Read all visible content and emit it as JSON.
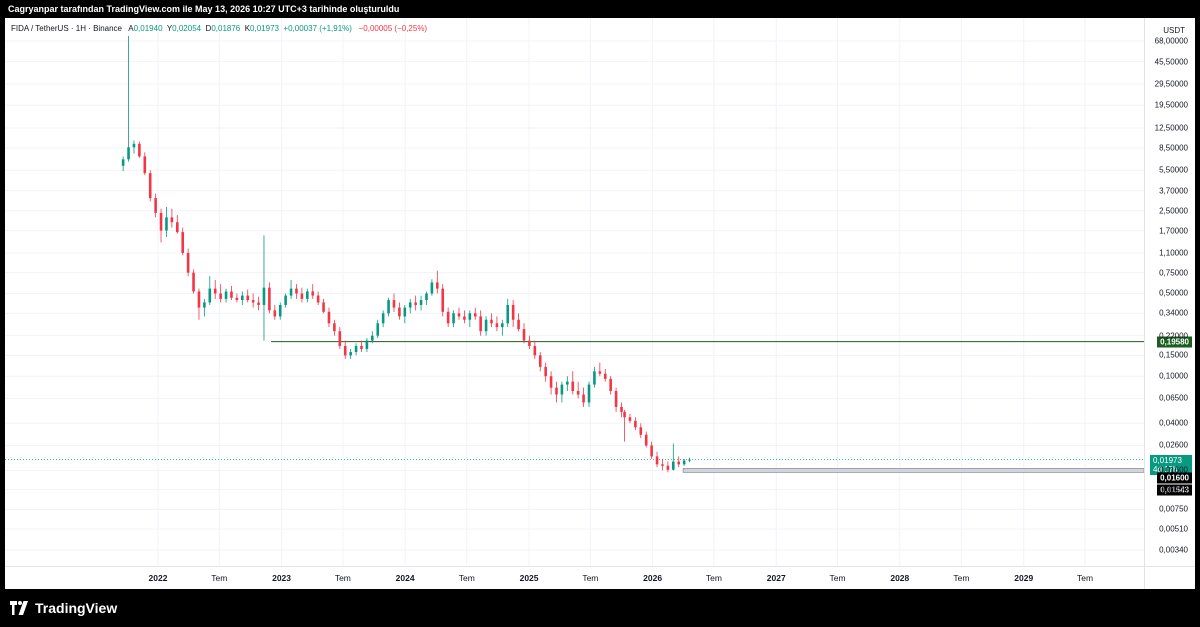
{
  "header": {
    "caption": "Cagryanpar tarafından TradingView.com ile May 13, 2026 10:27 UTC+3 tarihinde oluşturuldu"
  },
  "legend": {
    "symbol": "FIDA / TetherUS · 1H · Binance",
    "open_label": "A",
    "open": "0,01940",
    "high_label": "Y",
    "high": "0,02054",
    "low_label": "D",
    "low": "0,01876",
    "close_label": "K",
    "close": "0,01973",
    "change": "+0,00037 (+1,91%)",
    "extra_change": "−0,00005 (−0,25%)"
  },
  "price_scale": {
    "currency": "USDT",
    "ticks": [
      "68,00000",
      "45,50000",
      "29,50000",
      "19,50000",
      "12,50000",
      "8,50000",
      "5,50000",
      "3,70000",
      "2,50000",
      "1,70000",
      "1,10000",
      "0,75000",
      "0,50000",
      "0,34000",
      "0,22000",
      "0,15000",
      "0,10000",
      "0,06500",
      "0,04000",
      "0,02600",
      "0,01600",
      "0,01100",
      "0,00750",
      "0,00510",
      "0,00340"
    ],
    "scale": "log"
  },
  "time_axis": {
    "ticks": [
      {
        "label": "2022",
        "date": "2022-01-01",
        "year": true
      },
      {
        "label": "Tem",
        "date": "2022-07-01",
        "year": false
      },
      {
        "label": "2023",
        "date": "2023-01-01",
        "year": true
      },
      {
        "label": "Tem",
        "date": "2023-07-01",
        "year": false
      },
      {
        "label": "2024",
        "date": "2024-01-01",
        "year": true
      },
      {
        "label": "Tem",
        "date": "2024-07-01",
        "year": false
      },
      {
        "label": "2025",
        "date": "2025-01-01",
        "year": true
      },
      {
        "label": "Tem",
        "date": "2025-07-01",
        "year": false
      },
      {
        "label": "2026",
        "date": "2026-01-01",
        "year": true
      },
      {
        "label": "Tem",
        "date": "2026-07-01",
        "year": false
      },
      {
        "label": "2027",
        "date": "2027-01-01",
        "year": true
      },
      {
        "label": "Tem",
        "date": "2027-07-01",
        "year": false
      },
      {
        "label": "2028",
        "date": "2028-01-01",
        "year": true
      },
      {
        "label": "Tem",
        "date": "2028-07-01",
        "year": false
      },
      {
        "label": "2029",
        "date": "2029-01-01",
        "year": true
      },
      {
        "label": "Tem",
        "date": "2029-07-01",
        "year": false
      }
    ]
  },
  "price_tags": {
    "level_high": "0,19580",
    "last_price": "0,01973",
    "countdown": "4d 17h",
    "level_low": "0,01600",
    "low_mark": "0,01543"
  },
  "colors": {
    "up": "#089981",
    "down": "#f23645",
    "level_line": "#1b5e20",
    "grid": "#f0f3fa"
  },
  "chart_data": {
    "type": "candlestick",
    "symbol": "FIDA / TetherUS",
    "interval": "1H",
    "exchange": "Binance",
    "y_scale": "log",
    "grid": true,
    "horizontal_levels": [
      {
        "value": 0.1958,
        "from": "2022-12-01",
        "label": "0,19580"
      },
      {
        "value": 0.016,
        "from": "2026-04-01",
        "label": "0,01600"
      }
    ],
    "last_price": 0.01973,
    "ohlc": [
      [
        "2021-09-20",
        6.0,
        7.2,
        5.4,
        6.8
      ],
      [
        "2021-10-06",
        6.8,
        75,
        6.5,
        8.6
      ],
      [
        "2021-10-22",
        8.6,
        9.8,
        7.6,
        9.2
      ],
      [
        "2021-11-07",
        9.2,
        9.6,
        7.0,
        7.2
      ],
      [
        "2021-11-23",
        7.2,
        7.8,
        5.0,
        5.2
      ],
      [
        "2021-12-09",
        5.2,
        5.5,
        3.0,
        3.2
      ],
      [
        "2021-12-25",
        3.2,
        3.5,
        2.2,
        2.4
      ],
      [
        "2022-01-10",
        2.4,
        2.6,
        1.35,
        1.7
      ],
      [
        "2022-01-26",
        1.7,
        2.7,
        1.5,
        2.2
      ],
      [
        "2022-02-11",
        2.2,
        2.6,
        1.8,
        2.0
      ],
      [
        "2022-02-27",
        2.0,
        2.3,
        1.6,
        1.65
      ],
      [
        "2022-03-15",
        1.65,
        1.8,
        1.05,
        1.1
      ],
      [
        "2022-03-31",
        1.1,
        1.2,
        0.7,
        0.75
      ],
      [
        "2022-04-16",
        0.75,
        0.8,
        0.5,
        0.52
      ],
      [
        "2022-05-02",
        0.52,
        0.55,
        0.3,
        0.38
      ],
      [
        "2022-05-18",
        0.38,
        0.45,
        0.32,
        0.42
      ],
      [
        "2022-06-03",
        0.42,
        0.7,
        0.4,
        0.55
      ],
      [
        "2022-06-19",
        0.55,
        0.65,
        0.45,
        0.5
      ],
      [
        "2022-07-05",
        0.5,
        0.6,
        0.42,
        0.45
      ],
      [
        "2022-07-21",
        0.45,
        0.55,
        0.42,
        0.52
      ],
      [
        "2022-08-06",
        0.52,
        0.58,
        0.44,
        0.46
      ],
      [
        "2022-08-22",
        0.46,
        0.5,
        0.42,
        0.44
      ],
      [
        "2022-09-07",
        0.44,
        0.52,
        0.4,
        0.48
      ],
      [
        "2022-09-23",
        0.48,
        0.54,
        0.42,
        0.44
      ],
      [
        "2022-10-09",
        0.44,
        0.5,
        0.38,
        0.42
      ],
      [
        "2022-10-25",
        0.42,
        0.47,
        0.36,
        0.4
      ],
      [
        "2022-11-10",
        0.4,
        1.55,
        0.2,
        0.56
      ],
      [
        "2022-11-26",
        0.56,
        0.62,
        0.34,
        0.36
      ],
      [
        "2022-12-12",
        0.36,
        0.4,
        0.3,
        0.32
      ],
      [
        "2022-12-28",
        0.32,
        0.42,
        0.3,
        0.4
      ],
      [
        "2023-01-13",
        0.4,
        0.5,
        0.38,
        0.48
      ],
      [
        "2023-01-29",
        0.48,
        0.65,
        0.45,
        0.55
      ],
      [
        "2023-02-14",
        0.55,
        0.6,
        0.45,
        0.5
      ],
      [
        "2023-03-02",
        0.5,
        0.56,
        0.42,
        0.45
      ],
      [
        "2023-03-18",
        0.45,
        0.55,
        0.42,
        0.52
      ],
      [
        "2023-04-03",
        0.52,
        0.6,
        0.45,
        0.48
      ],
      [
        "2023-04-19",
        0.48,
        0.52,
        0.4,
        0.42
      ],
      [
        "2023-05-05",
        0.42,
        0.45,
        0.34,
        0.35
      ],
      [
        "2023-05-21",
        0.35,
        0.38,
        0.26,
        0.28
      ],
      [
        "2023-06-06",
        0.28,
        0.3,
        0.22,
        0.24
      ],
      [
        "2023-06-22",
        0.24,
        0.26,
        0.17,
        0.18
      ],
      [
        "2023-07-08",
        0.18,
        0.2,
        0.14,
        0.15
      ],
      [
        "2023-07-24",
        0.15,
        0.17,
        0.14,
        0.16
      ],
      [
        "2023-08-09",
        0.16,
        0.19,
        0.15,
        0.18
      ],
      [
        "2023-08-25",
        0.18,
        0.2,
        0.16,
        0.17
      ],
      [
        "2023-09-10",
        0.17,
        0.21,
        0.16,
        0.2
      ],
      [
        "2023-09-26",
        0.2,
        0.24,
        0.19,
        0.22
      ],
      [
        "2023-10-12",
        0.22,
        0.3,
        0.21,
        0.28
      ],
      [
        "2023-10-28",
        0.28,
        0.36,
        0.26,
        0.34
      ],
      [
        "2023-11-13",
        0.34,
        0.46,
        0.32,
        0.44
      ],
      [
        "2023-11-29",
        0.44,
        0.5,
        0.35,
        0.38
      ],
      [
        "2023-12-15",
        0.38,
        0.42,
        0.3,
        0.32
      ],
      [
        "2023-12-31",
        0.32,
        0.4,
        0.28,
        0.38
      ],
      [
        "2024-01-16",
        0.38,
        0.45,
        0.34,
        0.42
      ],
      [
        "2024-02-01",
        0.42,
        0.48,
        0.36,
        0.4
      ],
      [
        "2024-02-17",
        0.4,
        0.48,
        0.36,
        0.44
      ],
      [
        "2024-03-04",
        0.44,
        0.52,
        0.4,
        0.5
      ],
      [
        "2024-03-20",
        0.5,
        0.66,
        0.48,
        0.62
      ],
      [
        "2024-04-05",
        0.62,
        0.78,
        0.5,
        0.55
      ],
      [
        "2024-04-21",
        0.55,
        0.6,
        0.32,
        0.35
      ],
      [
        "2024-05-07",
        0.35,
        0.38,
        0.26,
        0.28
      ],
      [
        "2024-05-23",
        0.28,
        0.36,
        0.26,
        0.34
      ],
      [
        "2024-06-08",
        0.34,
        0.38,
        0.3,
        0.32
      ],
      [
        "2024-06-24",
        0.32,
        0.36,
        0.28,
        0.3
      ],
      [
        "2024-07-10",
        0.3,
        0.36,
        0.26,
        0.34
      ],
      [
        "2024-07-26",
        0.34,
        0.38,
        0.3,
        0.32
      ],
      [
        "2024-08-11",
        0.32,
        0.36,
        0.22,
        0.24
      ],
      [
        "2024-08-27",
        0.24,
        0.32,
        0.22,
        0.3
      ],
      [
        "2024-09-12",
        0.3,
        0.34,
        0.26,
        0.28
      ],
      [
        "2024-09-28",
        0.28,
        0.32,
        0.24,
        0.26
      ],
      [
        "2024-10-14",
        0.26,
        0.3,
        0.22,
        0.28
      ],
      [
        "2024-10-30",
        0.28,
        0.45,
        0.26,
        0.4
      ],
      [
        "2024-11-15",
        0.4,
        0.44,
        0.26,
        0.3
      ],
      [
        "2024-12-01",
        0.3,
        0.34,
        0.24,
        0.25
      ],
      [
        "2024-12-17",
        0.25,
        0.28,
        0.19,
        0.2
      ],
      [
        "2025-01-02",
        0.2,
        0.22,
        0.17,
        0.18
      ],
      [
        "2025-01-18",
        0.18,
        0.2,
        0.14,
        0.15
      ],
      [
        "2025-02-03",
        0.15,
        0.16,
        0.11,
        0.12
      ],
      [
        "2025-02-19",
        0.12,
        0.13,
        0.09,
        0.1
      ],
      [
        "2025-03-07",
        0.1,
        0.11,
        0.07,
        0.08
      ],
      [
        "2025-03-23",
        0.08,
        0.09,
        0.06,
        0.07
      ],
      [
        "2025-04-08",
        0.07,
        0.09,
        0.06,
        0.085
      ],
      [
        "2025-04-24",
        0.085,
        0.1,
        0.075,
        0.09
      ],
      [
        "2025-05-10",
        0.09,
        0.11,
        0.07,
        0.075
      ],
      [
        "2025-05-26",
        0.075,
        0.09,
        0.065,
        0.07
      ],
      [
        "2025-06-11",
        0.07,
        0.08,
        0.055,
        0.06
      ],
      [
        "2025-06-27",
        0.06,
        0.09,
        0.055,
        0.085
      ],
      [
        "2025-07-13",
        0.085,
        0.12,
        0.08,
        0.11
      ],
      [
        "2025-07-29",
        0.11,
        0.13,
        0.1,
        0.105
      ],
      [
        "2025-08-14",
        0.105,
        0.115,
        0.09,
        0.095
      ],
      [
        "2025-08-30",
        0.095,
        0.1,
        0.07,
        0.075
      ],
      [
        "2025-09-15",
        0.075,
        0.08,
        0.05,
        0.055
      ],
      [
        "2025-10-01",
        0.055,
        0.06,
        0.045,
        0.05
      ],
      [
        "2025-10-10",
        0.05,
        0.052,
        0.028,
        0.045
      ],
      [
        "2025-10-26",
        0.045,
        0.048,
        0.04,
        0.042
      ],
      [
        "2025-11-11",
        0.042,
        0.045,
        0.035,
        0.037
      ],
      [
        "2025-11-27",
        0.037,
        0.04,
        0.03,
        0.032
      ],
      [
        "2025-12-13",
        0.032,
        0.034,
        0.025,
        0.026
      ],
      [
        "2025-12-29",
        0.026,
        0.028,
        0.02,
        0.021
      ],
      [
        "2026-01-14",
        0.021,
        0.023,
        0.017,
        0.018
      ],
      [
        "2026-01-30",
        0.018,
        0.02,
        0.016,
        0.0175
      ],
      [
        "2026-02-15",
        0.0175,
        0.019,
        0.0154,
        0.0162
      ],
      [
        "2026-03-03",
        0.0162,
        0.027,
        0.016,
        0.019
      ],
      [
        "2026-03-19",
        0.019,
        0.021,
        0.017,
        0.018
      ],
      [
        "2026-04-04",
        0.018,
        0.02,
        0.0175,
        0.0194
      ],
      [
        "2026-04-20",
        0.0194,
        0.0205,
        0.01876,
        0.01973
      ]
    ]
  }
}
